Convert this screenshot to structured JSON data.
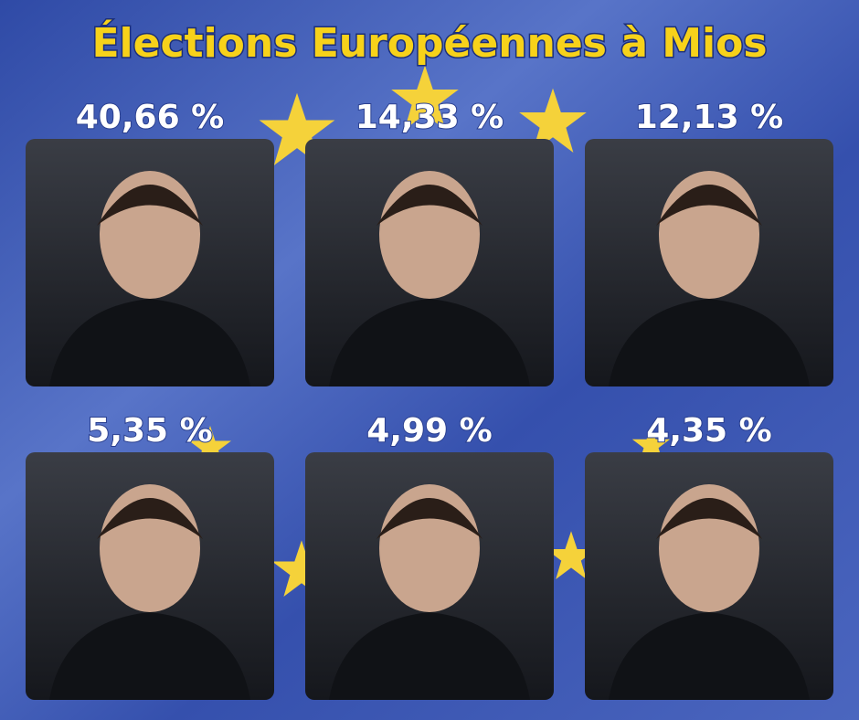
{
  "header": {
    "title": "Élections Européennes à Mios"
  },
  "cards": [
    {
      "label": "40,66 %"
    },
    {
      "label": "14,33 %"
    },
    {
      "label": "12,13 %"
    },
    {
      "label": "5,35 %"
    },
    {
      "label": "4,99 %"
    },
    {
      "label": "4,35 %"
    }
  ]
}
